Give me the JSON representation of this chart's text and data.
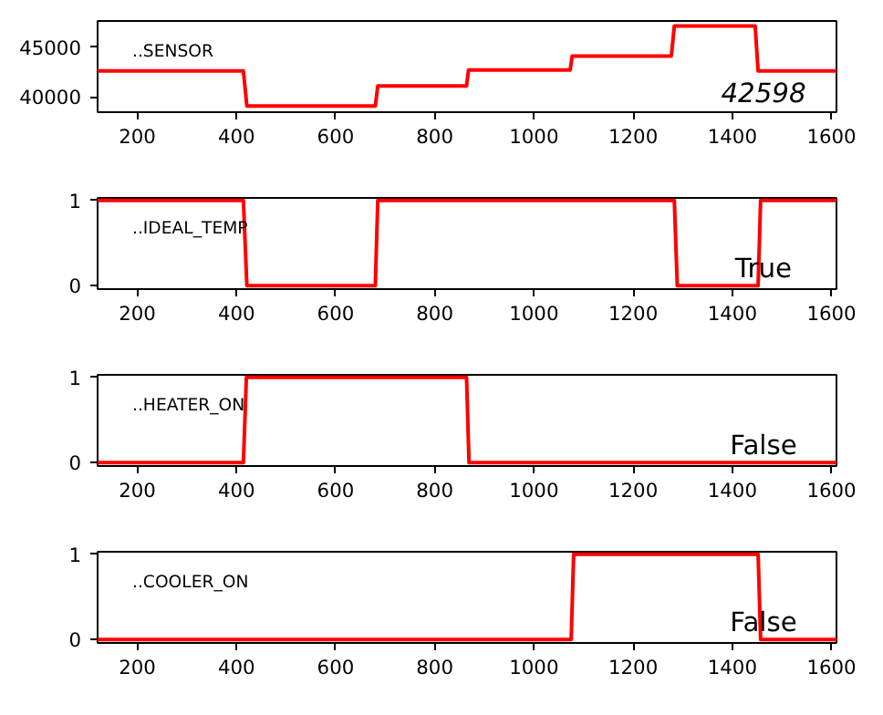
{
  "chart_data": [
    {
      "type": "line",
      "annotations": [
        "..SENSOR",
        "42598"
      ],
      "x": [
        120,
        414,
        421,
        680,
        685,
        864,
        868,
        1073,
        1077,
        1277,
        1283,
        1446,
        1452,
        1610
      ],
      "series": [
        {
          "color": "#ff0000",
          "values": [
            42600,
            42600,
            39100,
            39100,
            41100,
            41100,
            42700,
            42700,
            44100,
            44100,
            47100,
            47100,
            42600,
            42600
          ]
        }
      ],
      "xlim": [
        120,
        1610
      ],
      "xticks": [
        200,
        400,
        600,
        800,
        1000,
        1200,
        1400,
        1600
      ],
      "ylim": [
        38480,
        47600
      ],
      "yticks": [
        40000,
        45000
      ],
      "grid": false
    },
    {
      "type": "line",
      "annotations": [
        "..IDEAL_TEMP",
        "True"
      ],
      "x": [
        120,
        414,
        421,
        680,
        685,
        1283,
        1289,
        1452,
        1457,
        1610
      ],
      "series": [
        {
          "color": "#ff0000",
          "values": [
            1,
            1,
            0,
            0,
            1,
            1,
            0,
            0,
            1,
            1
          ]
        }
      ],
      "xlim": [
        120,
        1610
      ],
      "xticks": [
        200,
        400,
        600,
        800,
        1000,
        1200,
        1400,
        1600
      ],
      "ylim": [
        -0.04,
        1.03
      ],
      "yticks": [
        0,
        1
      ],
      "grid": false
    },
    {
      "type": "line",
      "annotations": [
        "..HEATER_ON",
        "False"
      ],
      "x": [
        120,
        414,
        420,
        864,
        869,
        1610
      ],
      "series": [
        {
          "color": "#ff0000",
          "values": [
            0,
            0,
            1,
            1,
            0,
            0
          ]
        }
      ],
      "xlim": [
        120,
        1610
      ],
      "xticks": [
        200,
        400,
        600,
        800,
        1000,
        1200,
        1400,
        1600
      ],
      "ylim": [
        -0.04,
        1.03
      ],
      "yticks": [
        0,
        1
      ],
      "grid": false
    },
    {
      "type": "line",
      "annotations": [
        "..COOLER_ON",
        "False"
      ],
      "x": [
        120,
        1075,
        1080,
        1452,
        1457,
        1610
      ],
      "series": [
        {
          "color": "#ff0000",
          "values": [
            0,
            0,
            1,
            1,
            0,
            0
          ]
        }
      ],
      "xlim": [
        120,
        1610
      ],
      "xticks": [
        200,
        400,
        600,
        800,
        1000,
        1200,
        1400,
        1600
      ],
      "ylim": [
        -0.04,
        1.03
      ],
      "yticks": [
        0,
        1
      ],
      "grid": false
    }
  ]
}
